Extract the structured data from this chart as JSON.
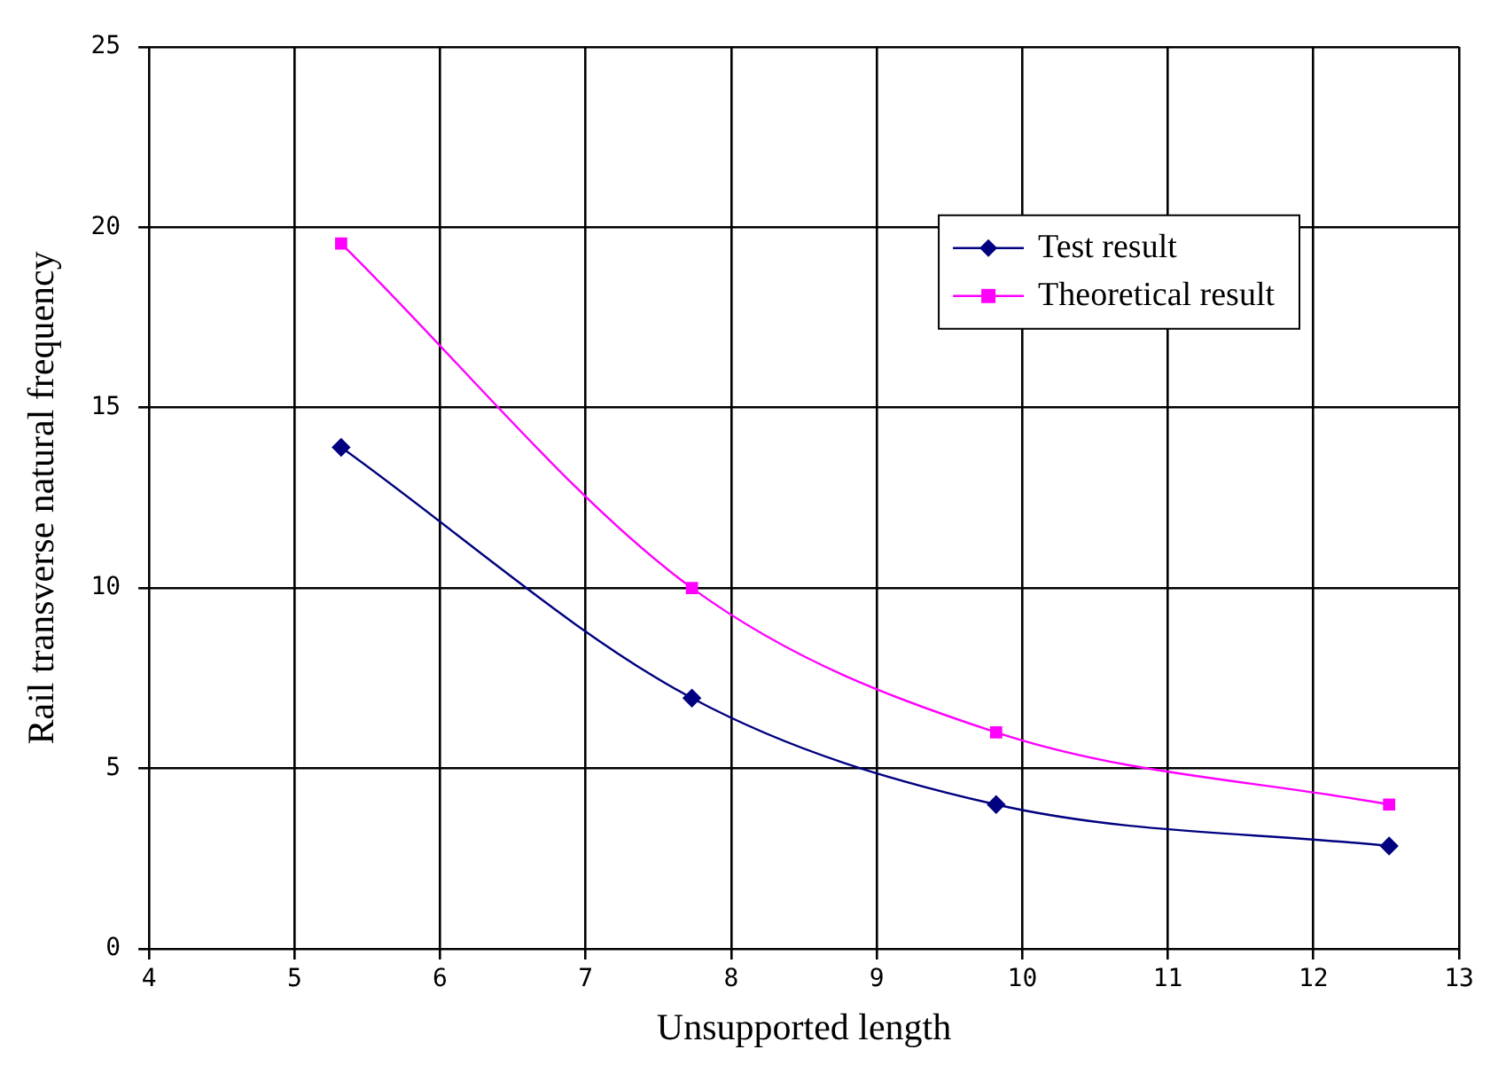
{
  "chart_data": {
    "type": "line",
    "xlabel": "Unsupported length",
    "ylabel": "Rail transverse natural frequency",
    "xlim": [
      4,
      13
    ],
    "xticks": [
      4,
      5,
      6,
      7,
      8,
      9,
      10,
      11,
      12,
      13
    ],
    "ylim": [
      0,
      25
    ],
    "yticks": [
      0,
      5,
      10,
      15,
      20,
      25
    ],
    "grid": true,
    "legend": "top right",
    "series": [
      {
        "name": "Test result",
        "color": "#000080",
        "marker": "diamond",
        "x": [
          5.32,
          7.73,
          9.82,
          12.52
        ],
        "values": [
          13.9,
          6.95,
          4.0,
          2.85
        ]
      },
      {
        "name": "Theoretical result",
        "color": "#ff00ff",
        "marker": "square",
        "x": [
          5.32,
          7.73,
          9.82,
          12.52
        ],
        "values": [
          19.55,
          10.0,
          6.0,
          4.0
        ]
      }
    ]
  }
}
